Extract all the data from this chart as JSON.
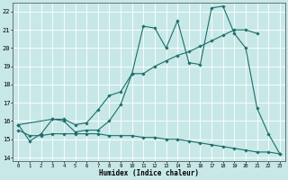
{
  "title": "",
  "xlabel": "Humidex (Indice chaleur)",
  "ylabel": "",
  "background_color": "#c8e8e8",
  "grid_color": "#ffffff",
  "line_color": "#1a6e6a",
  "xlim": [
    -0.5,
    23.5
  ],
  "ylim": [
    13.8,
    22.5
  ],
  "yticks": [
    14,
    15,
    16,
    17,
    18,
    19,
    20,
    21,
    22
  ],
  "xticks": [
    0,
    1,
    2,
    3,
    4,
    5,
    6,
    7,
    8,
    9,
    10,
    11,
    12,
    13,
    14,
    15,
    16,
    17,
    18,
    19,
    20,
    21,
    22,
    23
  ],
  "line1_x": [
    0,
    1,
    2,
    3,
    4,
    5,
    6,
    7,
    8,
    9,
    10,
    11,
    12,
    13,
    14,
    15,
    16,
    17,
    18,
    19,
    20,
    21,
    22,
    23
  ],
  "line1_y": [
    15.8,
    14.9,
    15.3,
    16.1,
    16.0,
    15.4,
    15.5,
    15.5,
    16.0,
    16.9,
    18.6,
    21.2,
    21.1,
    20.0,
    21.5,
    19.2,
    19.1,
    22.2,
    22.3,
    20.8,
    20.0,
    16.7,
    15.3,
    14.2
  ],
  "line2_x": [
    0,
    3,
    4,
    5,
    6,
    7,
    8,
    9,
    10,
    11,
    12,
    13,
    14,
    15,
    16,
    17,
    18,
    19,
    20,
    21
  ],
  "line2_y": [
    15.8,
    16.1,
    16.1,
    15.8,
    15.9,
    16.6,
    17.4,
    17.6,
    18.6,
    18.6,
    19.0,
    19.3,
    19.6,
    19.8,
    20.1,
    20.4,
    20.7,
    21.0,
    21.0,
    20.8
  ],
  "line3_x": [
    0,
    1,
    2,
    3,
    4,
    5,
    6,
    7,
    8,
    9,
    10,
    11,
    12,
    13,
    14,
    15,
    16,
    17,
    18,
    19,
    20,
    21,
    22,
    23
  ],
  "line3_y": [
    15.5,
    15.2,
    15.2,
    15.3,
    15.3,
    15.3,
    15.3,
    15.3,
    15.2,
    15.2,
    15.2,
    15.1,
    15.1,
    15.0,
    15.0,
    14.9,
    14.8,
    14.7,
    14.6,
    14.5,
    14.4,
    14.3,
    14.3,
    14.2
  ]
}
